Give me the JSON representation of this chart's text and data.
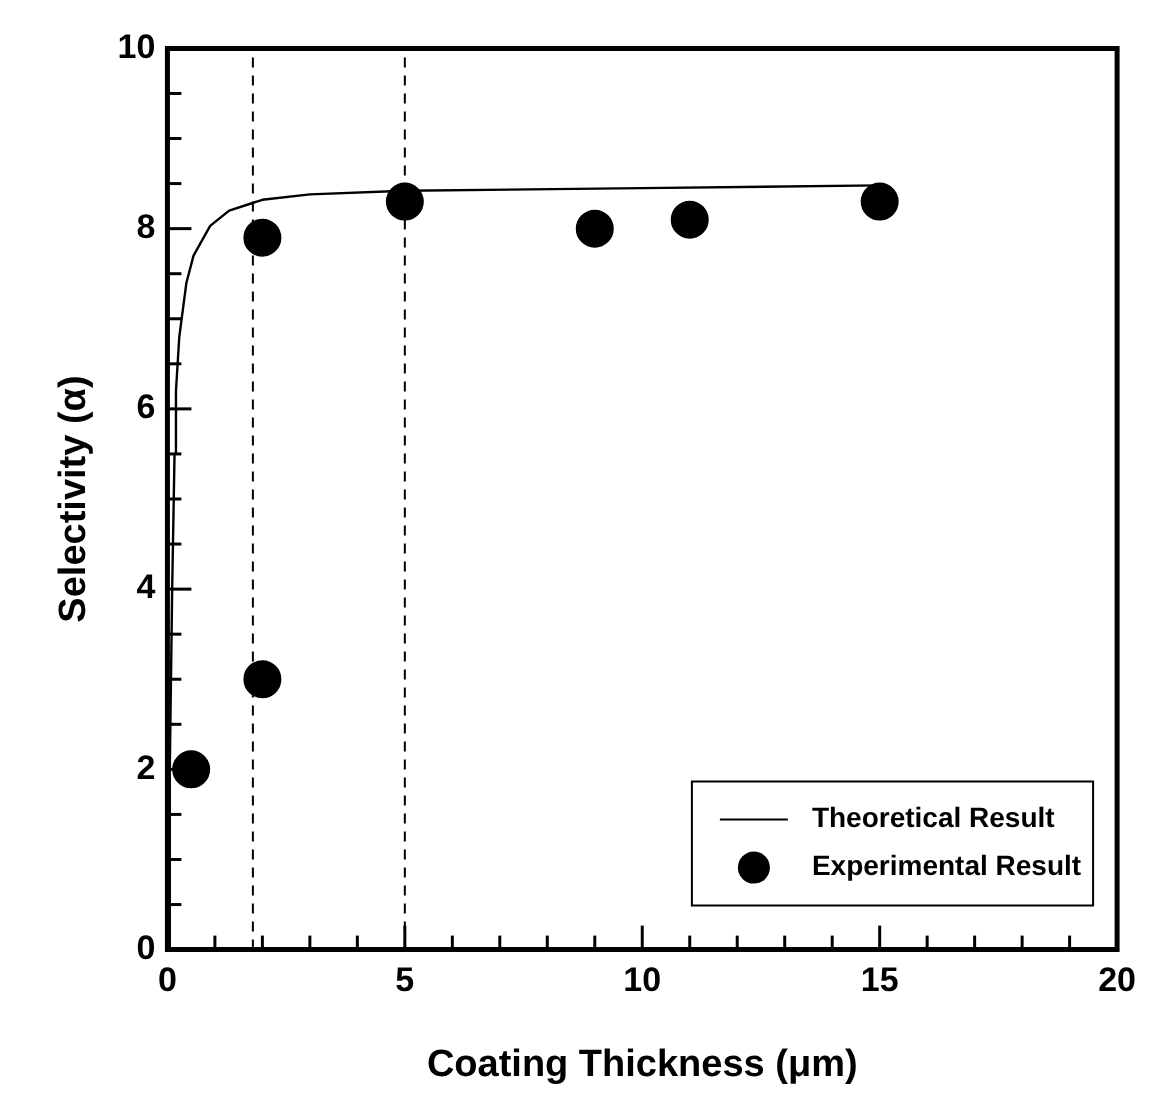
{
  "chart_data": {
    "type": "scatter",
    "xlabel": "Coating Thickness (μm)",
    "ylabel": "Selectivity (α)",
    "xlim": [
      0,
      20
    ],
    "ylim": [
      0,
      10
    ],
    "xticks": [
      0,
      {
        "value": 1,
        "label": null
      },
      {
        "value": 2,
        "label": null
      },
      {
        "value": 3,
        "label": null
      },
      {
        "value": 4,
        "label": null
      },
      5,
      {
        "value": 6,
        "label": null
      },
      {
        "value": 7,
        "label": null
      },
      {
        "value": 8,
        "label": null
      },
      {
        "value": 9,
        "label": null
      },
      10,
      {
        "value": 11,
        "label": null
      },
      {
        "value": 12,
        "label": null
      },
      {
        "value": 13,
        "label": null
      },
      {
        "value": 14,
        "label": null
      },
      15,
      {
        "value": 16,
        "label": null
      },
      {
        "value": 17,
        "label": null
      },
      {
        "value": 18,
        "label": null
      },
      {
        "value": 19,
        "label": null
      },
      20
    ],
    "yticks": [
      0,
      {
        "value": 0.5,
        "label": null
      },
      {
        "value": 1,
        "label": null
      },
      {
        "value": 1.5,
        "label": null
      },
      2,
      {
        "value": 2.5,
        "label": null
      },
      {
        "value": 3,
        "label": null
      },
      {
        "value": 3.5,
        "label": null
      },
      4,
      {
        "value": 4.5,
        "label": null
      },
      {
        "value": 5,
        "label": null
      },
      {
        "value": 5.5,
        "label": null
      },
      6,
      {
        "value": 6.5,
        "label": null
      },
      {
        "value": 7,
        "label": null
      },
      {
        "value": 7.5,
        "label": null
      },
      8,
      {
        "value": 8.5,
        "label": null
      },
      {
        "value": 9,
        "label": null
      },
      {
        "value": 9.5,
        "label": null
      },
      10
    ],
    "grid": false,
    "legend": "bottom right",
    "ref_lines": [
      {
        "axis": "x",
        "value": 1.8,
        "color": "#000000",
        "line_style": "dashed"
      },
      {
        "axis": "x",
        "value": 5,
        "color": "#000000",
        "line_style": "dashed"
      }
    ],
    "series": [
      {
        "name": "Theoretical Result",
        "type": "line",
        "marker": "none",
        "line_style": "solid",
        "color": "#000000",
        "x": [
          0.02,
          0.05,
          0.1,
          0.15,
          0.18,
          0.25,
          0.4,
          0.55,
          0.9,
          1.3,
          2,
          3,
          5,
          10,
          15
        ],
        "values": [
          0,
          2,
          4,
          5.5,
          6.2,
          6.8,
          7.4,
          7.7,
          8.03,
          8.2,
          8.32,
          8.38,
          8.42,
          8.45,
          8.48
        ]
      },
      {
        "name": "Experimental Result",
        "marker": "circle",
        "color": "#000000",
        "x": [
          0.5,
          2,
          2,
          5,
          9,
          11,
          15
        ],
        "values": [
          2,
          3,
          7.9,
          8.3,
          8.0,
          8.1,
          8.3
        ]
      }
    ]
  }
}
